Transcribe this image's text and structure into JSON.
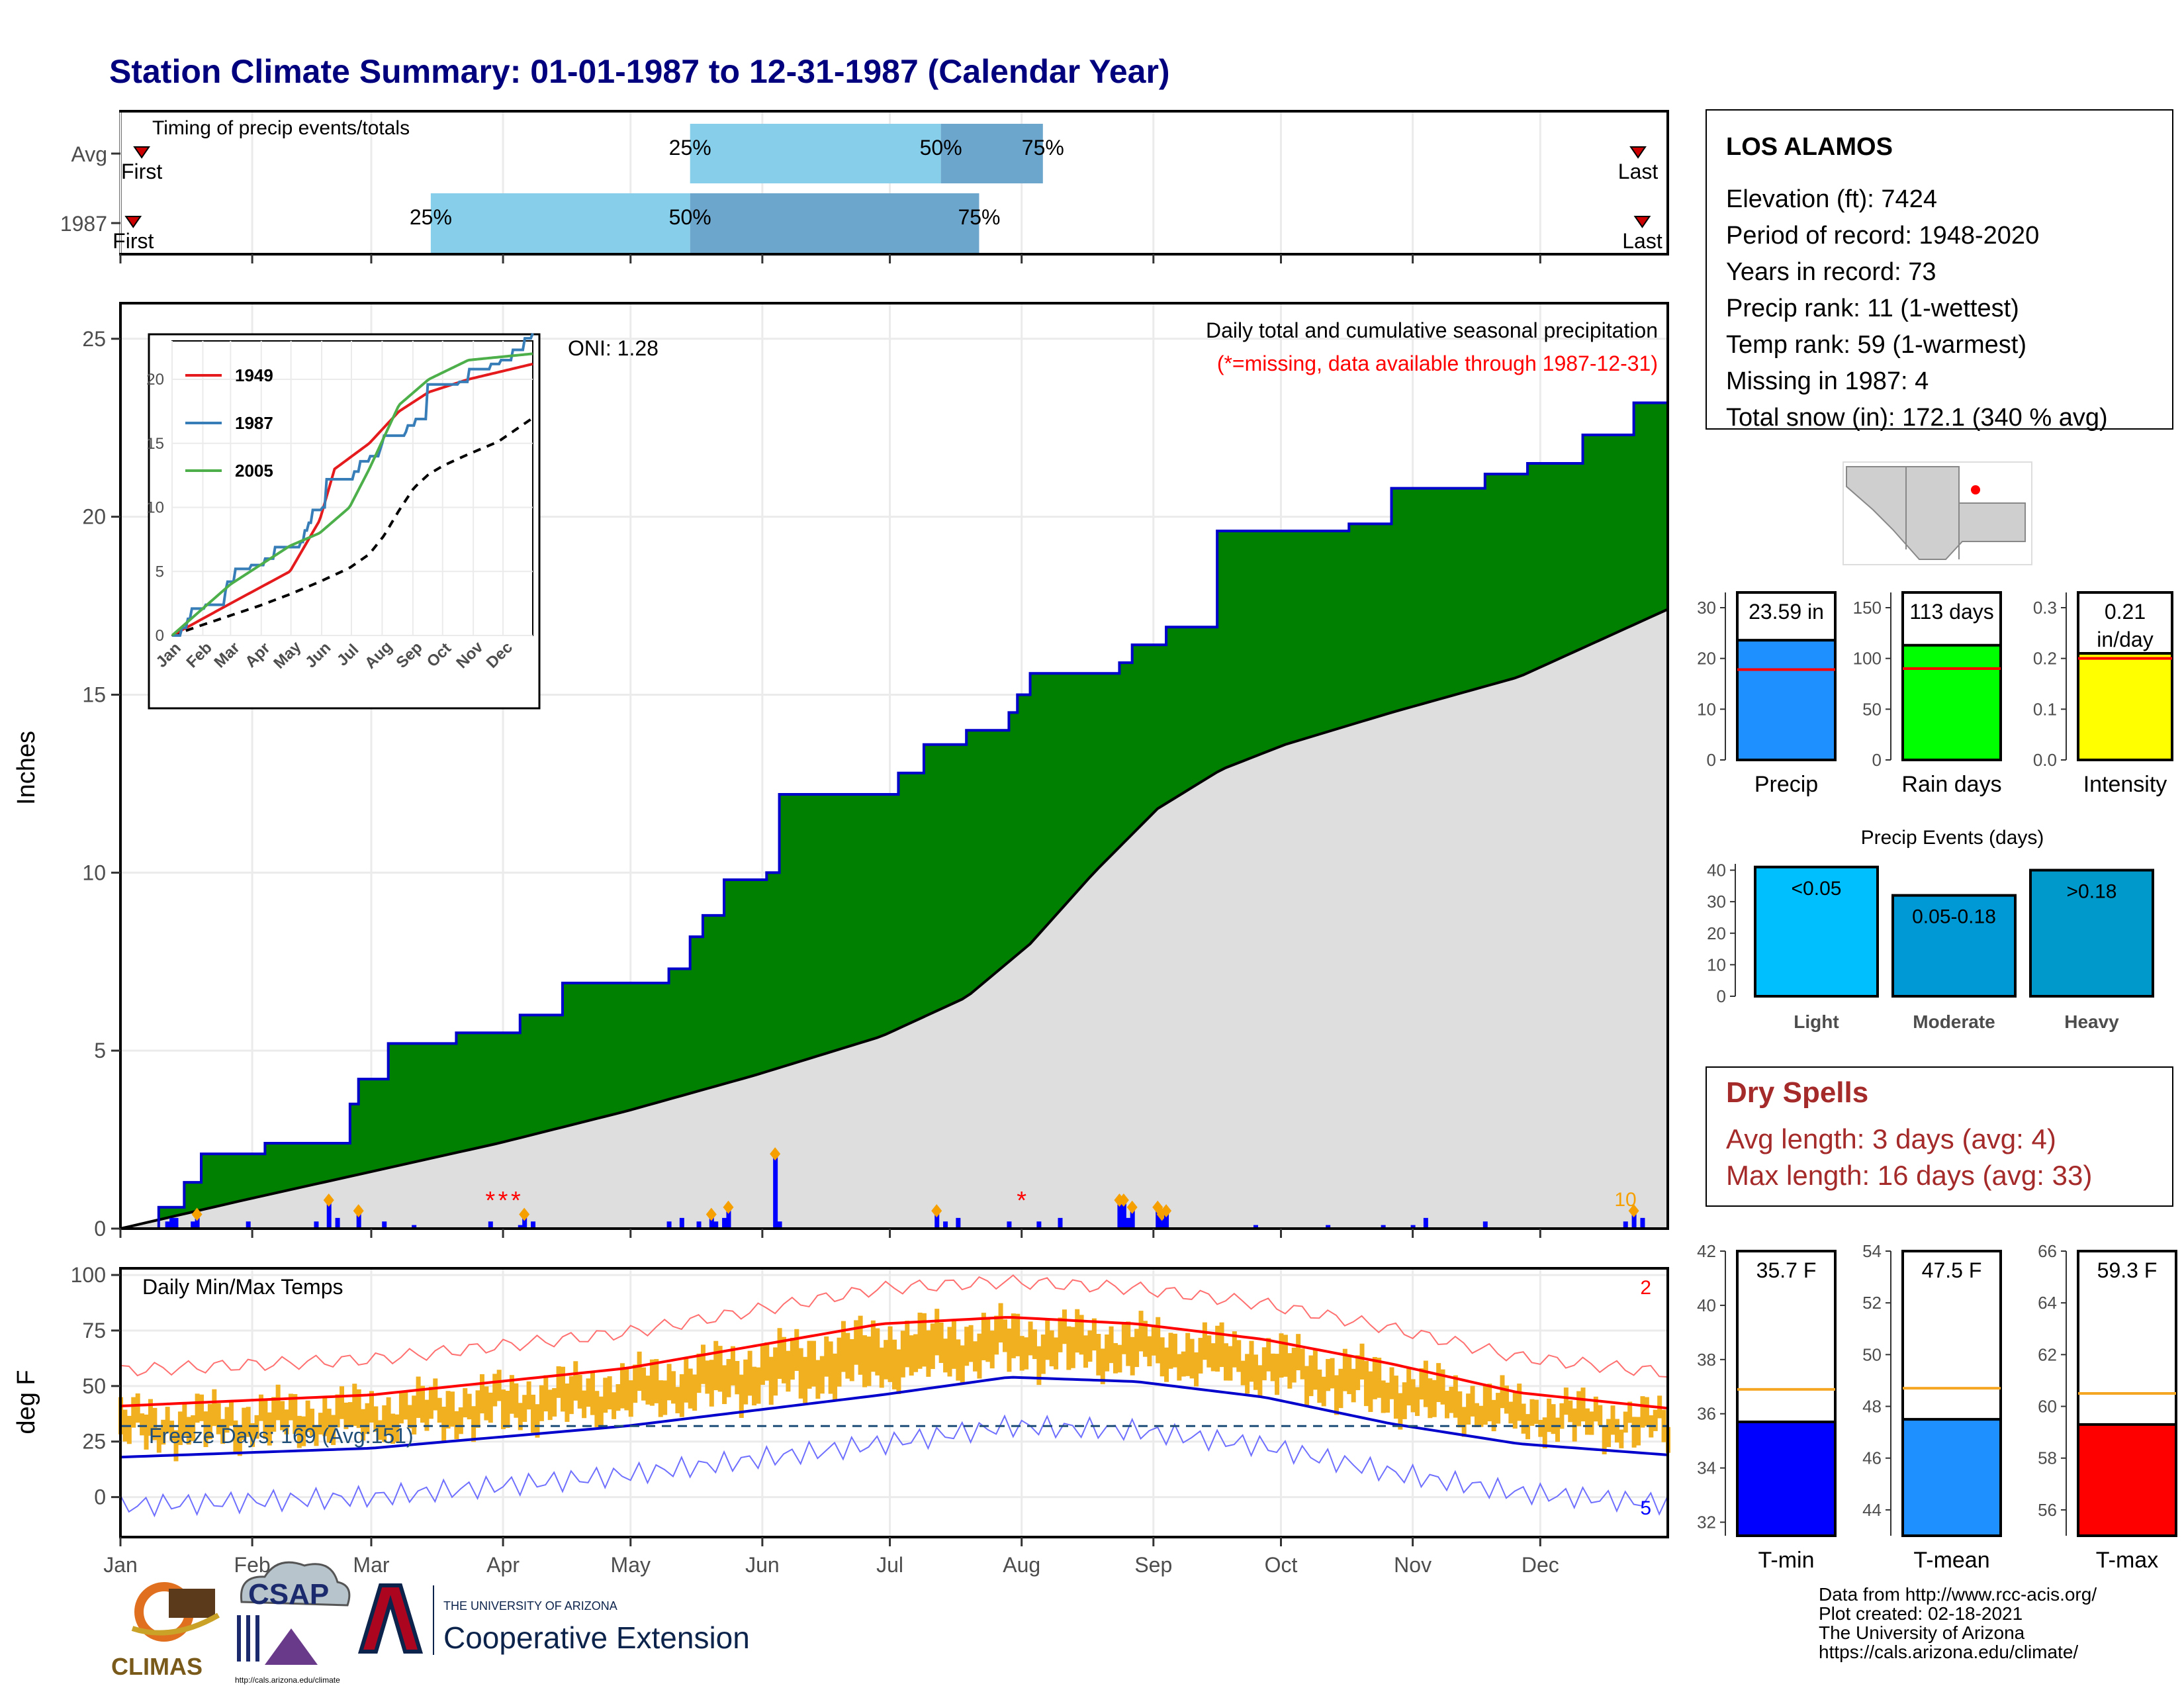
{
  "title": "Station Climate Summary: 01-01-1987 to 12-31-1987 (Calendar Year)",
  "colors": {
    "title": "#00007f",
    "precip_cum": "#008000",
    "precip_line": "#0000cc",
    "avg_cum": "#dedede",
    "bar_precip": "#1e90ff",
    "bar_raindays": "#00ff00",
    "bar_intensity": "#ffff00",
    "tmin": "#0000ff",
    "tmean": "#1e90ff",
    "tmax": "#ff0000",
    "light": "#00bfff",
    "moderate": "#0099d6",
    "heavy": "#0099cc",
    "dry_spells": "#a52a2a",
    "temp_fill": "#f0b020"
  },
  "timing": {
    "heading": "Timing of precip events/totals",
    "rows": [
      {
        "label": "Avg",
        "first": "First",
        "last": "Last",
        "p25": "25%",
        "p50": "50%",
        "p75": "75%",
        "q25_doy": 135,
        "q50_doy": 194,
        "q75_doy": 218,
        "first_doy": 6,
        "last_doy": 358
      },
      {
        "label": "1987",
        "first": "First",
        "last": "Last",
        "p25": "25%",
        "p50": "50%",
        "p75": "75%",
        "q25_doy": 74,
        "q50_doy": 135,
        "q75_doy": 203,
        "first_doy": 4,
        "last_doy": 359
      }
    ]
  },
  "station": {
    "name": "LOS ALAMOS",
    "lines": [
      "Elevation (ft): 7424",
      "Period of record: 1948-2020",
      "Years in record: 73",
      "Precip rank: 11 (1-wettest)",
      "Temp rank: 59 (1-warmest)",
      "Missing in 1987: 4",
      "Total snow (in): 172.1 (340 % avg)"
    ]
  },
  "main_chart": {
    "ylabel": "Inches",
    "subtitle": "Daily total and cumulative seasonal precipitation",
    "missing_note": "(*=missing, data available through 1987-12-31)",
    "oni": "ONI: 1.28",
    "count_label": "10",
    "months": [
      "Jan",
      "Feb",
      "Mar",
      "Apr",
      "May",
      "Jun",
      "Jul",
      "Aug",
      "Sep",
      "Oct",
      "Nov",
      "Dec"
    ],
    "yticks": [
      "0",
      "5",
      "10",
      "15",
      "20",
      "25"
    ]
  },
  "inset": {
    "months": [
      "Jan",
      "Feb",
      "Mar",
      "Apr",
      "May",
      "Jun",
      "Jul",
      "Aug",
      "Sep",
      "Oct",
      "Nov",
      "Dec"
    ],
    "yticks": [
      "0",
      "5",
      "10",
      "15",
      "20"
    ],
    "legend": [
      {
        "name": "1949",
        "color": "#e41a1c"
      },
      {
        "name": "1987",
        "color": "#377eb8"
      },
      {
        "name": "2005",
        "color": "#4daf4a"
      }
    ]
  },
  "temp_chart": {
    "ylabel": "deg F",
    "heading": "Daily Min/Max Temps",
    "freeze": "Freeze Days: 169 (Avg:151)",
    "count_top": "2",
    "count_bottom": "5",
    "yticks": [
      "0",
      "25",
      "50",
      "75",
      "100"
    ]
  },
  "chart_data": [
    {
      "type": "area",
      "title": "Daily total and cumulative seasonal precipitation",
      "ylabel": "Inches",
      "ylim": [
        0,
        26
      ],
      "xlim_doy": [
        1,
        365
      ],
      "cumulative_1987": {
        "doy": [
          1,
          10,
          16,
          20,
          35,
          55,
          57,
          64,
          80,
          95,
          105,
          130,
          135,
          138,
          143,
          153,
          156,
          184,
          190,
          200,
          210,
          212,
          215,
          236,
          239,
          247,
          259,
          290,
          300,
          322,
          332,
          345,
          357,
          365
        ],
        "values": [
          0,
          0.6,
          1.3,
          2.1,
          2.4,
          3.5,
          4.2,
          5.2,
          5.5,
          6.0,
          6.9,
          7.3,
          8.2,
          8.8,
          9.8,
          10.0,
          12.2,
          12.8,
          13.6,
          14.0,
          14.5,
          15.0,
          15.6,
          15.9,
          16.4,
          16.9,
          19.6,
          19.8,
          20.8,
          21.2,
          21.5,
          22.3,
          23.2,
          23.59
        ]
      },
      "cumulative_avg": {
        "doy": [
          1,
          30,
          60,
          90,
          120,
          150,
          180,
          200,
          215,
          230,
          245,
          260,
          275,
          300,
          330,
          365
        ],
        "values": [
          0,
          0.8,
          1.6,
          2.4,
          3.3,
          4.3,
          5.4,
          6.5,
          8.0,
          10.0,
          11.8,
          12.9,
          13.6,
          14.5,
          15.5,
          17.4
        ]
      },
      "daily_doy": [
        12,
        13,
        14,
        18,
        19,
        31,
        47,
        50,
        52,
        57,
        63,
        70,
        88,
        95,
        96,
        98,
        130,
        133,
        137,
        140,
        141,
        143,
        144,
        155,
        156,
        193,
        195,
        198,
        210,
        217,
        222,
        236,
        237,
        238,
        239,
        245,
        246,
        247,
        268,
        285,
        298,
        305,
        308,
        322,
        355,
        357,
        359
      ],
      "daily_values": [
        0.2,
        0.3,
        0.3,
        0.2,
        0.4,
        0.2,
        0.2,
        0.8,
        0.3,
        0.5,
        0.2,
        0.1,
        0.2,
        0.1,
        0.4,
        0.2,
        0.2,
        0.3,
        0.2,
        0.4,
        0.2,
        0.3,
        0.6,
        2.1,
        0.2,
        0.5,
        0.2,
        0.3,
        0.2,
        0.2,
        0.3,
        0.8,
        0.8,
        0.3,
        0.6,
        0.6,
        0.4,
        0.5,
        0.1,
        0.1,
        0.1,
        0.1,
        0.3,
        0.2,
        0.2,
        0.5,
        0.3
      ],
      "missing_doy": [
        88,
        91,
        94,
        213
      ]
    },
    {
      "type": "line",
      "title": "",
      "series": [
        {
          "name": "1949",
          "end_value": 21.2
        },
        {
          "name": "1987",
          "end_value": 23.59
        },
        {
          "name": "2005",
          "end_value": 22.0
        }
      ],
      "ylim": [
        0,
        23
      ]
    },
    {
      "type": "line",
      "title": "Daily Min/Max Temps",
      "ylabel": "deg F",
      "ylim": [
        -18,
        103
      ],
      "normal_max": {
        "doy": [
          1,
          60,
          120,
          180,
          210,
          240,
          270,
          300,
          330,
          365
        ],
        "values": [
          41,
          46,
          58,
          78,
          81,
          78,
          71,
          60,
          47,
          40
        ]
      },
      "normal_min": {
        "doy": [
          1,
          60,
          120,
          180,
          210,
          240,
          270,
          300,
          330,
          365
        ],
        "values": [
          18,
          22,
          32,
          46,
          54,
          52,
          45,
          33,
          24,
          19
        ]
      },
      "freeze_line": 32
    },
    {
      "type": "bar",
      "title": "",
      "categories": [
        "Precip"
      ],
      "values": [
        23.59
      ],
      "avg": 17.8,
      "label": "23.59 in",
      "ylim": [
        0,
        33
      ],
      "yticks": [
        "0",
        "10",
        "20",
        "30"
      ]
    },
    {
      "type": "bar",
      "title": "",
      "categories": [
        "Rain days"
      ],
      "values": [
        113
      ],
      "avg": 90,
      "label": "113 days",
      "ylim": [
        0,
        165
      ],
      "yticks": [
        "0",
        "50",
        "100",
        "150"
      ]
    },
    {
      "type": "bar",
      "title": "",
      "categories": [
        "Intensity"
      ],
      "values": [
        0.21
      ],
      "avg": 0.2,
      "label": "0.21 in/day",
      "ylim": [
        0,
        0.33
      ],
      "yticks": [
        "0.0",
        "0.1",
        "0.2",
        "0.3"
      ]
    },
    {
      "type": "bar",
      "title": "Precip Events (days)",
      "categories": [
        "Light",
        "Moderate",
        "Heavy"
      ],
      "values": [
        41,
        32,
        40
      ],
      "bar_labels": [
        "<0.05",
        "0.05-0.18",
        ">0.18"
      ],
      "ylim": [
        0,
        42
      ],
      "yticks": [
        "0",
        "10",
        "20",
        "30",
        "40"
      ]
    },
    {
      "type": "bar",
      "title": "",
      "categories": [
        "T-min"
      ],
      "values": [
        35.7
      ],
      "avg": 36.9,
      "label": "35.7 F",
      "ylim": [
        31.5,
        42
      ],
      "yticks": [
        "32",
        "34",
        "36",
        "38",
        "40",
        "42"
      ]
    },
    {
      "type": "bar",
      "title": "",
      "categories": [
        "T-mean"
      ],
      "values": [
        47.5
      ],
      "avg": 48.7,
      "label": "47.5 F",
      "ylim": [
        43,
        54
      ],
      "yticks": [
        "44",
        "46",
        "48",
        "50",
        "52",
        "54"
      ]
    },
    {
      "type": "bar",
      "title": "",
      "categories": [
        "T-max"
      ],
      "values": [
        59.3
      ],
      "avg": 60.5,
      "label": "59.3 F",
      "ylim": [
        55,
        66
      ],
      "yticks": [
        "56",
        "58",
        "60",
        "62",
        "64",
        "66"
      ]
    }
  ],
  "dry_spells": {
    "title": "Dry Spells",
    "avg_length": "Avg length: 3 days (avg: 4)",
    "max_length": "Max length: 16 days (avg: 33)"
  },
  "logos": {
    "climas": "CLIMAS",
    "csap": "CSAP",
    "csap_url": "http://cals.arizona.edu/climate",
    "ua_small": "THE UNIVERSITY OF ARIZONA",
    "ua_big": "Cooperative Extension"
  },
  "credits": [
    "Data from http://www.rcc-acis.org/",
    "Plot created: 02-18-2021",
    "The University of Arizona",
    "https://cals.arizona.edu/climate/"
  ]
}
